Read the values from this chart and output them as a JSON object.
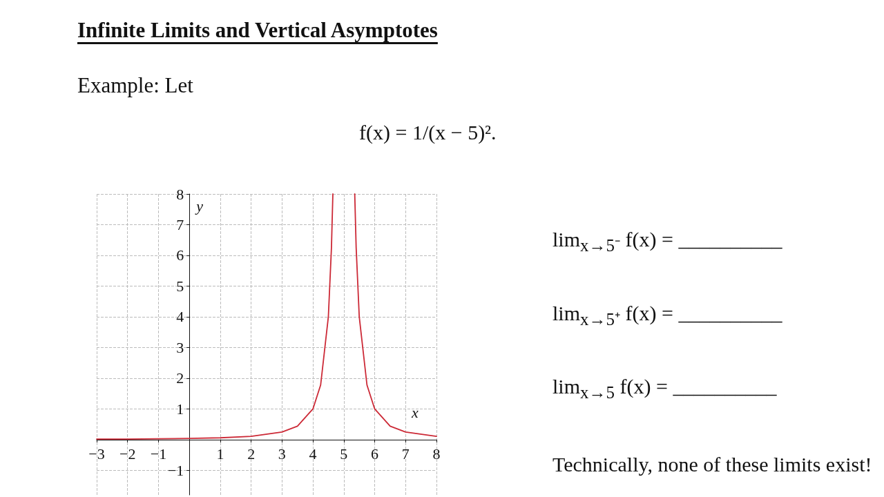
{
  "chart_data": {
    "type": "line",
    "title": "Infinite Limits and Vertical Asymptotes",
    "subtitle": "Example: Let",
    "annotations": [
      "f(x) = 1/(x − 5)².",
      "lim$_{x→5⁻}$ f(x) = __________",
      "lim$_{x→5⁺}$ f(x) = __________",
      "lim$_{x→5}$ f(x) = __________",
      "Technically, none of these limits exist!"
    ],
    "xlabel": "x",
    "ylabel": "y",
    "series": [
      {
        "color": "#cc2936",
        "x": [
          -3,
          -2,
          -1,
          0,
          1,
          2,
          3,
          3.5,
          4,
          4.25,
          4.5,
          4.6,
          4.646,
          5,
          5.354,
          5.4,
          5.5,
          5.75,
          6,
          6.5,
          7,
          8
        ],
        "values": [
          0.02,
          0.02,
          0.03,
          0.04,
          0.06,
          0.11,
          0.25,
          0.44,
          1,
          1.78,
          4,
          6.25,
          8,
          null,
          8,
          6.25,
          4,
          1.78,
          1,
          0.44,
          0.25,
          0.11
        ]
      }
    ],
    "xlim": [
      -3,
      8
    ],
    "ylim": [
      -1.8,
      8
    ],
    "xticks": [
      -3,
      -2,
      -1,
      {
        "value": 0,
        "label": null
      },
      1,
      2,
      3,
      4,
      5,
      6,
      7,
      8
    ],
    "yticks": [
      -1,
      {
        "value": 0,
        "label": null
      },
      1,
      2,
      3,
      4,
      5,
      6,
      7,
      8
    ],
    "grid": true,
    "marker": "none",
    "line_style": "solid"
  }
}
